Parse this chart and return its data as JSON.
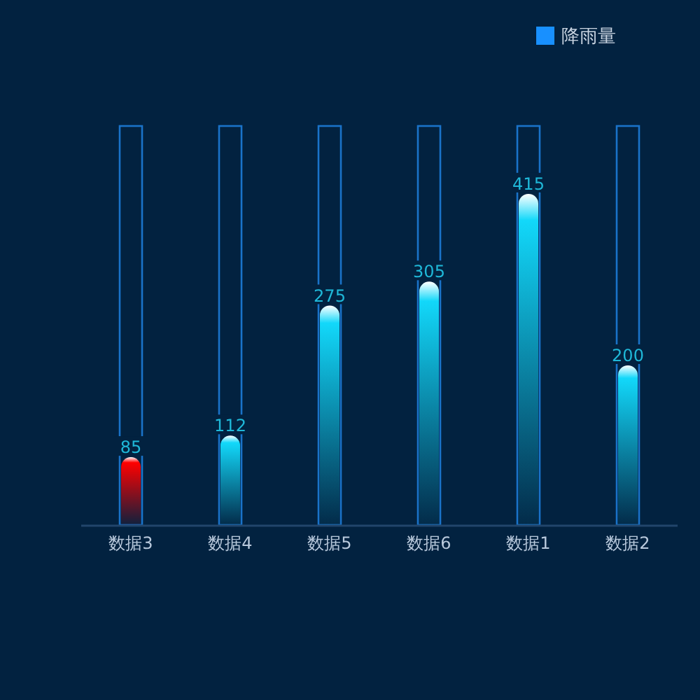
{
  "chart_data": {
    "type": "bar",
    "categories": [
      "数据3",
      "数据4",
      "数据5",
      "数据6",
      "数据1",
      "数据2"
    ],
    "series": [
      {
        "name": "降雨量",
        "color": "#1890ff",
        "colors": [
          "#ff0000",
          "#12d8fa",
          "#12d8fa",
          "#12d8fa",
          "#12d8fa",
          "#12d8fa"
        ],
        "values": [
          85,
          112,
          275,
          305,
          415,
          200
        ],
        "value_labels": [
          "85",
          "112",
          "275",
          "305",
          "415",
          "200"
        ]
      },
      {
        "color": "#1a73c9",
        "values": [
          500,
          500,
          500,
          500,
          500,
          500
        ]
      }
    ],
    "legend": "top right",
    "grid": false
  }
}
